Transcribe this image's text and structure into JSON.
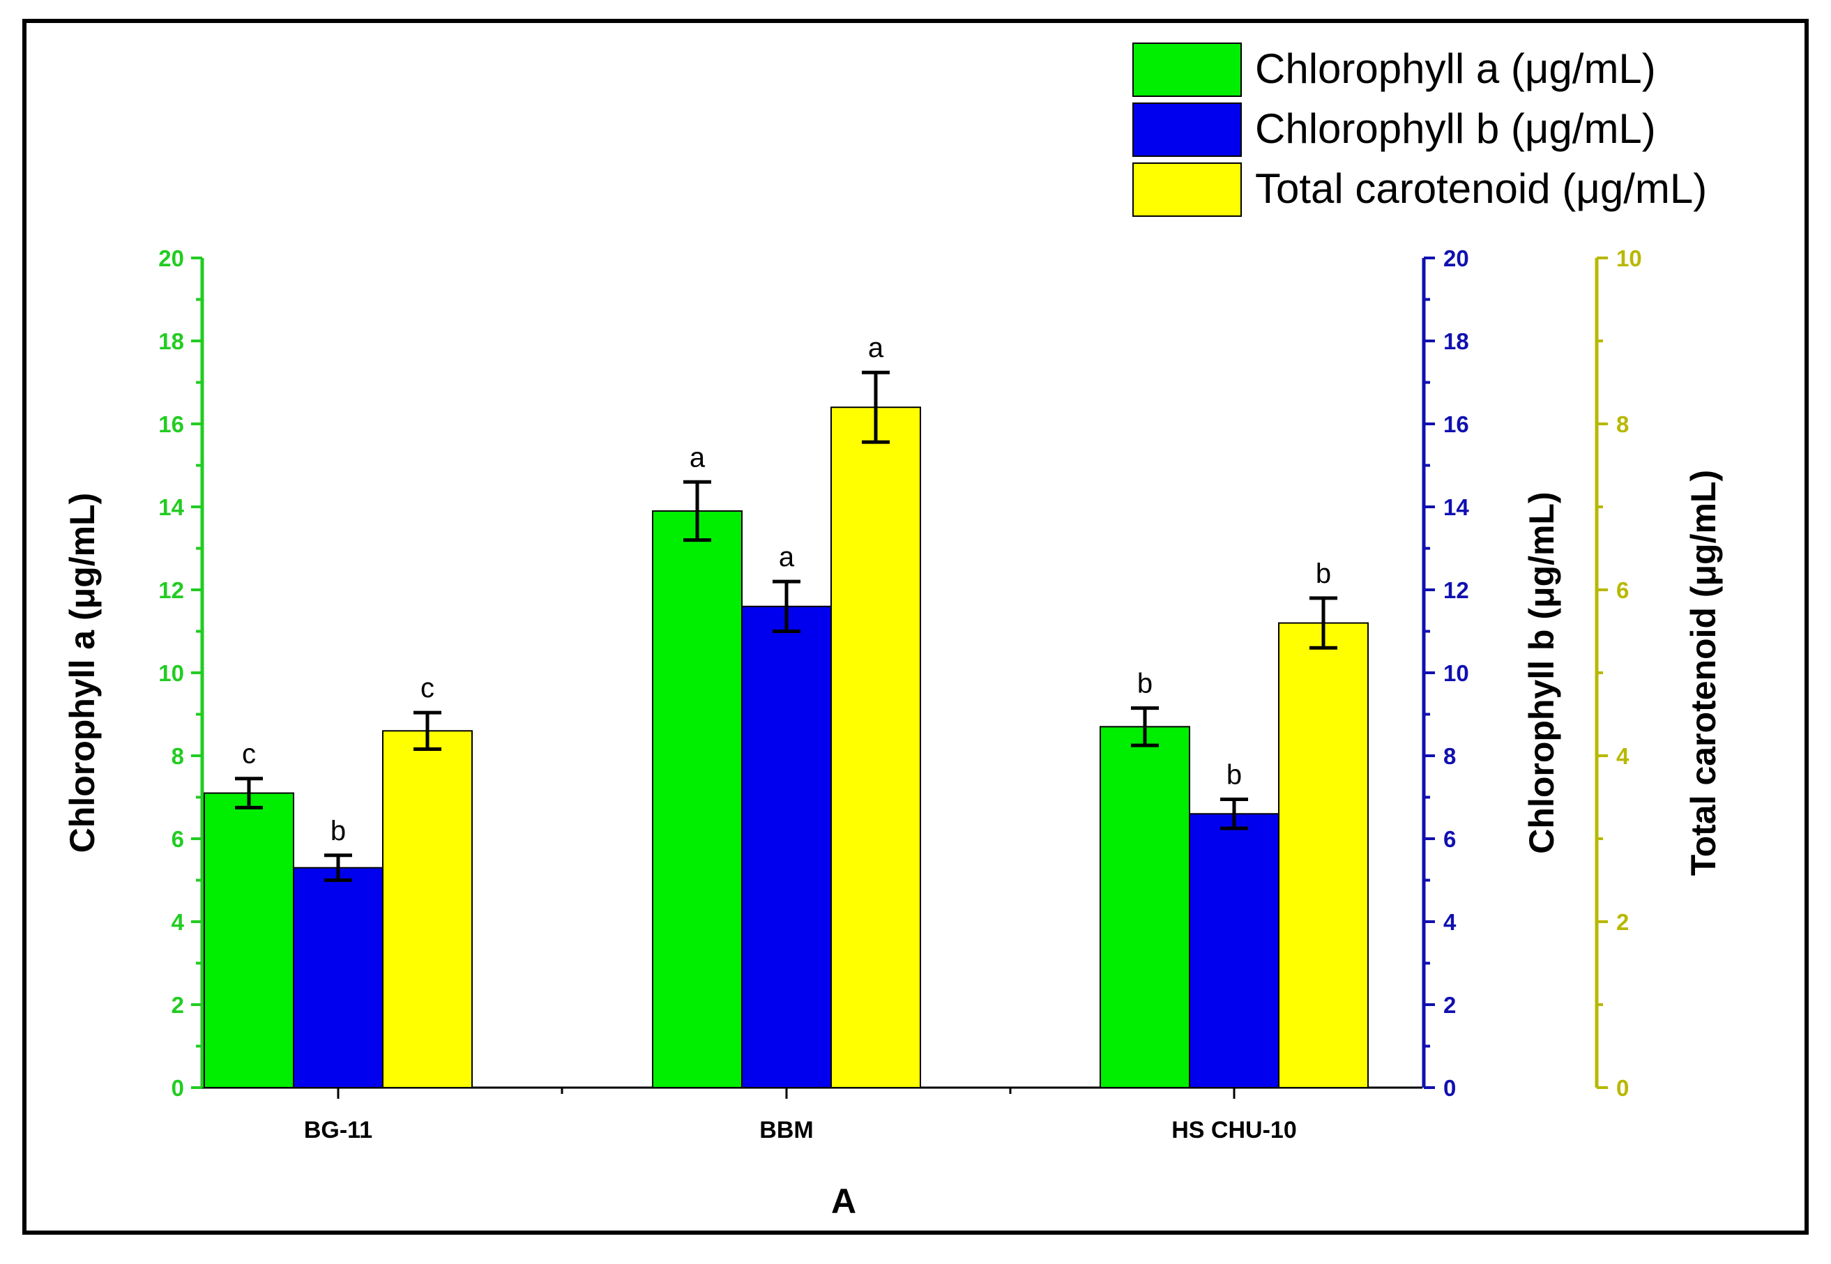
{
  "chart_data": {
    "type": "bar",
    "xlabel": "A",
    "categories": [
      "BG-11",
      "BBM",
      "HS CHU-10"
    ],
    "axes": {
      "left": {
        "label": "Chlorophyll a (μg/mL)",
        "ylim": [
          0,
          20
        ],
        "ticks": [
          "0",
          "2",
          "4",
          "6",
          "8",
          "10",
          "12",
          "14",
          "16",
          "18",
          "20"
        ],
        "color": "#22cc22"
      },
      "right1": {
        "label": "Chlorophyll b (μg/mL)",
        "ylim": [
          0,
          20
        ],
        "ticks": [
          "0",
          "2",
          "4",
          "6",
          "8",
          "10",
          "12",
          "14",
          "16",
          "18",
          "20"
        ],
        "color": "#1010b0"
      },
      "right2": {
        "label": "Total carotenoid (μg/mL)",
        "ylim": [
          0,
          10
        ],
        "ticks": [
          "0",
          "2",
          "4",
          "6",
          "8",
          "10"
        ],
        "color": "#b8b800"
      }
    },
    "series": [
      {
        "name": "Chlorophyll a (μg/mL)",
        "axis": "left",
        "color": "#00ee00",
        "values": [
          7.1,
          13.9,
          8.7
        ],
        "errors": [
          0.35,
          0.7,
          0.45
        ],
        "letters": [
          "c",
          "a",
          "b"
        ]
      },
      {
        "name": "Chlorophyll b (μg/mL)",
        "axis": "right1",
        "color": "#0000ee",
        "values": [
          5.3,
          11.6,
          6.6
        ],
        "errors": [
          0.3,
          0.6,
          0.35
        ],
        "letters": [
          "b",
          "a",
          "b"
        ]
      },
      {
        "name": "Total carotenoid (μg/mL)",
        "axis": "right2",
        "color": "#ffff00",
        "values": [
          4.3,
          8.2,
          5.6
        ],
        "errors": [
          0.22,
          0.42,
          0.3
        ],
        "letters": [
          "c",
          "a",
          "b"
        ]
      }
    ],
    "legend_position": "top-right"
  }
}
